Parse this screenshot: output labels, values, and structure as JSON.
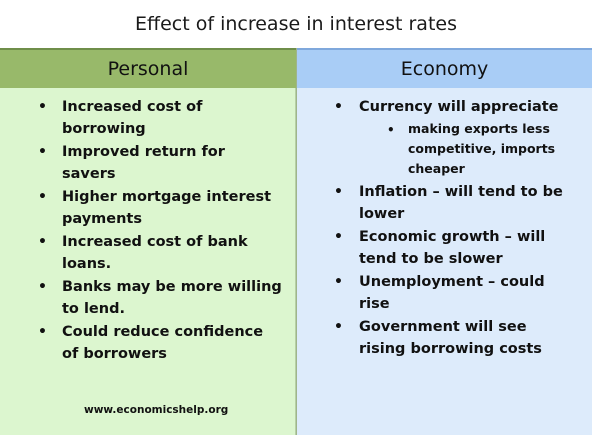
{
  "title": "Effect of increase in interest rates",
  "columns": {
    "left": {
      "header": "Personal",
      "items": [
        "Increased cost of borrowing",
        "Improved return for savers",
        "Higher mortgage interest payments",
        "Increased cost of bank loans.",
        "Banks may be more willing to lend.",
        "Could reduce confidence of borrowers"
      ]
    },
    "right": {
      "header": "Economy",
      "items": [
        {
          "text": "Currency will appreciate",
          "sub": [
            "making exports less competitive, imports cheaper"
          ]
        },
        {
          "text": "Inflation – will tend to be lower"
        },
        {
          "text": "Economic growth – will tend to be slower"
        },
        {
          "text": "Unemployment – could rise"
        },
        {
          "text": "Government will see rising borrowing costs"
        }
      ]
    }
  },
  "website": "www.economicshelp.org",
  "colors": {
    "personal_header": "#98b96a",
    "personal_body": "#dcf6cf",
    "economy_header": "#a9cdf6",
    "economy_body": "#ddebfb"
  }
}
